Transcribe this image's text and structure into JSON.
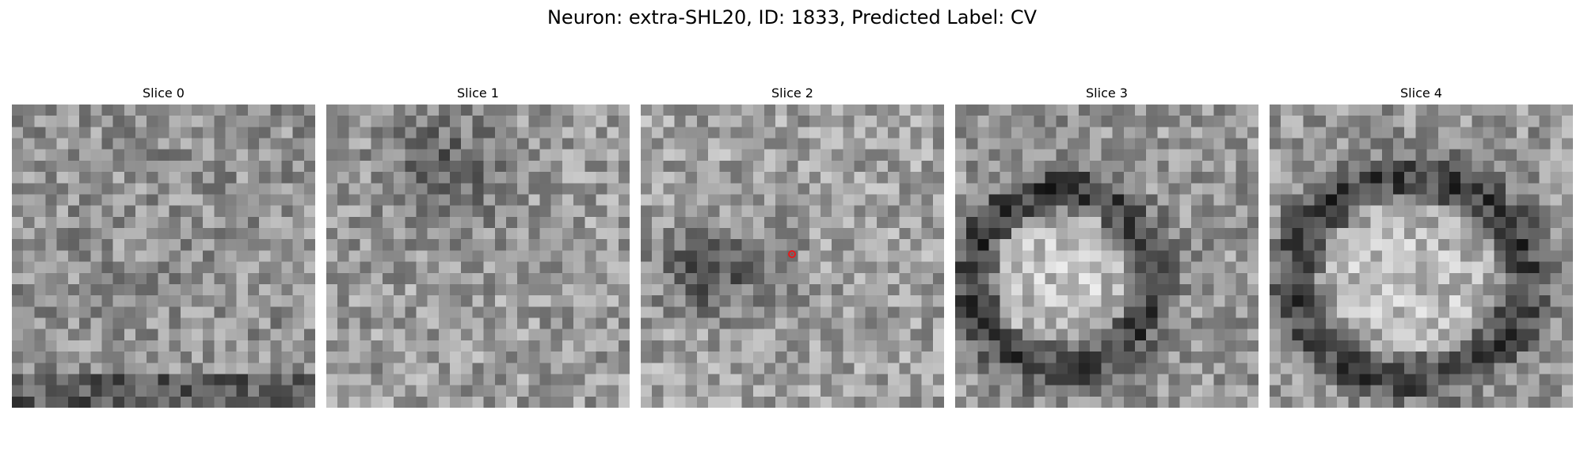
{
  "figure": {
    "title": "Neuron: extra-SHL20, ID: 1833, Predicted Label: CV"
  },
  "panels": [
    {
      "title": "Slice 0"
    },
    {
      "title": "Slice 1"
    },
    {
      "title": "Slice 2",
      "marker_color": "#e41a1c"
    },
    {
      "title": "Slice 3"
    },
    {
      "title": "Slice 4"
    }
  ],
  "colormap": "gray"
}
